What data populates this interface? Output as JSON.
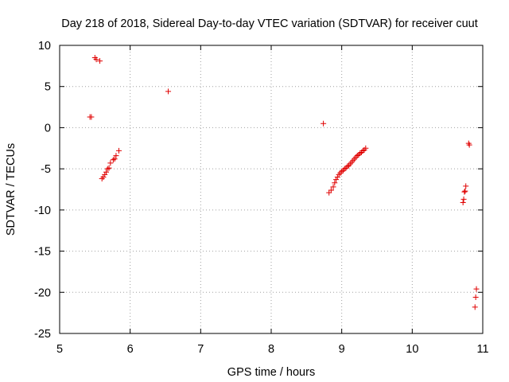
{
  "chart_data": {
    "type": "scatter",
    "title": "Day 218 of 2018, Sidereal Day-to-day VTEC variation (SDTVAR) for receiver cuut",
    "xlabel": "GPS time / hours",
    "ylabel": "SDTVAR / TECUs",
    "xlim": [
      5,
      11
    ],
    "ylim": [
      -25,
      10
    ],
    "xticks": [
      5,
      6,
      7,
      8,
      9,
      10,
      11
    ],
    "xtick_labels": [
      "5",
      "6",
      "7",
      "8",
      "9",
      "10",
      "11"
    ],
    "yticks": [
      -25,
      -20,
      -15,
      -10,
      -5,
      0,
      5,
      10
    ],
    "ytick_labels": [
      "-25",
      "-20",
      "-15",
      "-10",
      "-5",
      "0",
      "5",
      "10"
    ],
    "grid": true,
    "marker": "+",
    "color": "#e00000",
    "points": [
      [
        5.43,
        1.3
      ],
      [
        5.45,
        1.3
      ],
      [
        5.5,
        8.5
      ],
      [
        5.52,
        8.3
      ],
      [
        5.57,
        8.1
      ],
      [
        5.6,
        -6.2
      ],
      [
        5.62,
        -6.0
      ],
      [
        5.64,
        -5.7
      ],
      [
        5.66,
        -5.4
      ],
      [
        5.68,
        -5.0
      ],
      [
        5.7,
        -4.9
      ],
      [
        5.72,
        -4.3
      ],
      [
        5.76,
        -3.9
      ],
      [
        5.78,
        -3.8
      ],
      [
        5.8,
        -3.4
      ],
      [
        5.84,
        -2.8
      ],
      [
        6.54,
        4.4
      ],
      [
        8.74,
        0.5
      ],
      [
        8.82,
        -7.9
      ],
      [
        8.85,
        -7.6
      ],
      [
        8.88,
        -7.2
      ],
      [
        8.9,
        -6.7
      ],
      [
        8.92,
        -6.3
      ],
      [
        8.94,
        -6.0
      ],
      [
        8.96,
        -5.7
      ],
      [
        8.98,
        -5.5
      ],
      [
        9.0,
        -5.3
      ],
      [
        9.02,
        -5.2
      ],
      [
        9.04,
        -5.0
      ],
      [
        9.06,
        -4.9
      ],
      [
        9.08,
        -4.7
      ],
      [
        9.1,
        -4.6
      ],
      [
        9.12,
        -4.4
      ],
      [
        9.14,
        -4.2
      ],
      [
        9.16,
        -4.0
      ],
      [
        9.18,
        -3.8
      ],
      [
        9.2,
        -3.6
      ],
      [
        9.22,
        -3.4
      ],
      [
        9.24,
        -3.3
      ],
      [
        9.26,
        -3.1
      ],
      [
        9.28,
        -3.0
      ],
      [
        9.3,
        -2.8
      ],
      [
        9.32,
        -2.7
      ],
      [
        9.34,
        -2.5
      ],
      [
        10.72,
        -9.1
      ],
      [
        10.73,
        -8.7
      ],
      [
        10.74,
        -7.8
      ],
      [
        10.75,
        -7.7
      ],
      [
        10.76,
        -7.1
      ],
      [
        10.8,
        -1.9
      ],
      [
        10.81,
        -2.1
      ],
      [
        10.89,
        -21.8
      ],
      [
        10.9,
        -20.6
      ],
      [
        10.91,
        -19.6
      ]
    ]
  }
}
